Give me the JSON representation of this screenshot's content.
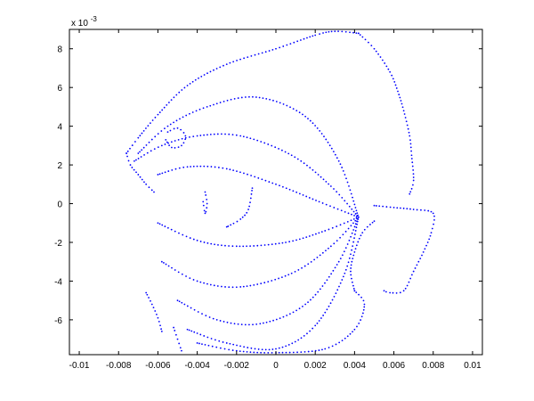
{
  "chart_data": {
    "type": "scatter",
    "title": "",
    "xlabel": "",
    "ylabel": "",
    "y_exponent_label": "x 10",
    "y_exponent_power": "-3",
    "xlim": [
      -0.0105,
      0.0105
    ],
    "ylim": [
      -7.8,
      9.0
    ],
    "grid": false,
    "marker_color": "#0000ff",
    "x_ticks": [
      -0.01,
      -0.008,
      -0.006,
      -0.004,
      -0.002,
      0,
      0.002,
      0.004,
      0.006,
      0.008,
      0.01
    ],
    "x_tick_labels": [
      "-0.01",
      "-0.008",
      "-0.006",
      "-0.004",
      "-0.002",
      "0",
      "0.002",
      "0.004",
      "0.006",
      "0.008",
      "0.01"
    ],
    "y_ticks": [
      -6,
      -4,
      -2,
      0,
      2,
      4,
      6,
      8
    ],
    "y_tick_labels": [
      "-6",
      "-4",
      "-2",
      "0",
      "2",
      "4",
      "6",
      "8"
    ],
    "focus_point": [
      0.0042,
      -0.7
    ],
    "series": [
      {
        "x": [
          -0.0076,
          -0.007,
          -0.006,
          -0.0045,
          -0.0025,
          0.0,
          0.002,
          0.003,
          0.0042
        ],
        "y": [
          2.6,
          3.4,
          4.6,
          6.1,
          7.2,
          8.0,
          8.7,
          8.9,
          8.8
        ]
      },
      {
        "x": [
          0.0042,
          0.005,
          0.0058,
          0.0062,
          0.0065,
          0.0068,
          0.0069,
          0.007,
          0.0068
        ],
        "y": [
          8.8,
          8.0,
          6.8,
          5.8,
          4.8,
          3.5,
          2.5,
          1.2,
          0.5
        ]
      },
      {
        "x": [
          -0.007,
          -0.0055,
          -0.0035,
          -0.001,
          0.0015,
          0.0032,
          0.0042
        ],
        "y": [
          2.6,
          4.0,
          5.0,
          5.5,
          4.5,
          2.2,
          -0.7
        ]
      },
      {
        "x": [
          -0.0072,
          -0.0058,
          -0.004,
          -0.0018,
          0.0008,
          0.0028,
          0.0042
        ],
        "y": [
          2.2,
          3.0,
          3.5,
          3.5,
          2.5,
          0.9,
          -0.7
        ]
      },
      {
        "x": [
          -0.006,
          -0.0045,
          -0.0025,
          0.0,
          0.0022,
          0.0042
        ],
        "y": [
          1.5,
          1.9,
          1.8,
          1.0,
          0.1,
          -0.7
        ]
      },
      {
        "x": [
          -0.006,
          -0.004,
          -0.002,
          0.0005,
          0.0025,
          0.0042
        ],
        "y": [
          -1.0,
          -1.9,
          -2.2,
          -2.0,
          -1.4,
          -0.7
        ]
      },
      {
        "x": [
          -0.0058,
          -0.004,
          -0.0018,
          0.0008,
          0.0028,
          0.0042
        ],
        "y": [
          -3.0,
          -4.0,
          -4.3,
          -3.6,
          -2.2,
          -0.7
        ]
      },
      {
        "x": [
          -0.005,
          -0.003,
          -0.0008,
          0.0015,
          0.0032,
          0.0042
        ],
        "y": [
          -5.0,
          -6.0,
          -6.2,
          -5.2,
          -3.0,
          -0.7
        ]
      },
      {
        "x": [
          -0.0045,
          -0.0025,
          0.0,
          0.002,
          0.0035,
          0.0042
        ],
        "y": [
          -6.5,
          -7.2,
          -7.5,
          -6.3,
          -3.6,
          -0.7
        ]
      },
      {
        "x": [
          -0.004,
          -0.002,
          0.0,
          0.0025,
          0.004,
          0.0045,
          0.004
        ],
        "y": [
          -7.2,
          -7.6,
          -7.7,
          -7.5,
          -6.5,
          -5.2,
          -4.5
        ]
      },
      {
        "x": [
          0.004,
          0.0038,
          0.004,
          0.0044,
          0.005
        ],
        "y": [
          -4.5,
          -3.5,
          -2.5,
          -1.5,
          -0.9
        ]
      },
      {
        "x": [
          0.005,
          0.006,
          0.007,
          0.008,
          0.0079,
          0.0075,
          0.007,
          0.0065,
          0.0058,
          0.0055
        ],
        "y": [
          -0.1,
          -0.2,
          -0.3,
          -0.5,
          -1.5,
          -2.5,
          -3.5,
          -4.5,
          -4.6,
          -4.5
        ]
      },
      {
        "x": [
          -0.0012,
          -0.0014,
          -0.0018,
          -0.0023,
          -0.0025
        ],
        "y": [
          0.8,
          -0.3,
          -0.8,
          -1.1,
          -1.2
        ]
      },
      {
        "x": [
          -0.0036,
          -0.0035,
          -0.0036,
          -0.0037
        ],
        "y": [
          0.6,
          0.0,
          -0.5,
          0.1
        ]
      },
      {
        "x": [
          -0.0055,
          -0.005,
          -0.0046,
          -0.0048,
          -0.0053,
          -0.0056
        ],
        "y": [
          3.7,
          3.9,
          3.5,
          3.0,
          2.9,
          3.3
        ]
      },
      {
        "x": [
          -0.0076,
          -0.0074,
          -0.007,
          -0.0066,
          -0.0062
        ],
        "y": [
          2.6,
          2.0,
          1.5,
          1.0,
          0.6
        ]
      },
      {
        "x": [
          -0.0066,
          -0.0063,
          -0.006,
          -0.0058
        ],
        "y": [
          -4.6,
          -5.2,
          -5.9,
          -6.6
        ]
      },
      {
        "x": [
          -0.0052,
          -0.005,
          -0.0048
        ],
        "y": [
          -6.4,
          -7.0,
          -7.6
        ]
      }
    ]
  }
}
